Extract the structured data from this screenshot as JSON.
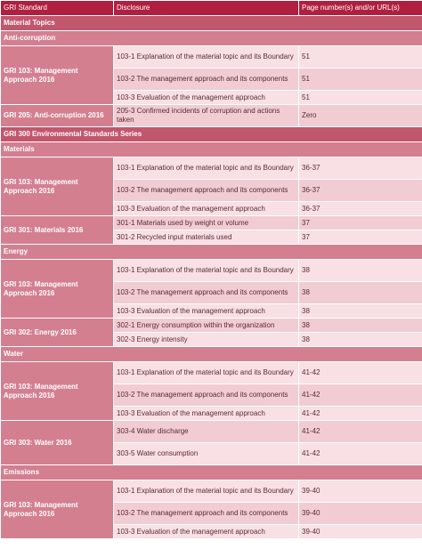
{
  "headers": [
    "GRI Standard",
    "Disclosure",
    "Page number(s) and/or URL(s)"
  ],
  "rows": [
    {
      "kind": "section",
      "label": "Material Topics"
    },
    {
      "kind": "group",
      "label": "Anti-corruption"
    },
    {
      "kind": "item",
      "std": "GRI 103: Management Approach 2016",
      "span": 3,
      "disclosure": "103-1 Explanation of the material topic and its Boundary",
      "page": "51"
    },
    {
      "kind": "item",
      "disclosure": "103-2 The management approach and its components",
      "page": "51"
    },
    {
      "kind": "item",
      "disclosure": "103-3 Evaluation of the management approach",
      "page": "51",
      "single": true
    },
    {
      "kind": "item",
      "std": "GRI 205: Anti-corruption 2016",
      "span": 1,
      "disclosure": "205-3 Confirmed incidents of corruption and actions taken",
      "page": "Zero"
    },
    {
      "kind": "section",
      "label": "GRI 300 Environmental Standards Series"
    },
    {
      "kind": "group",
      "label": "Materials"
    },
    {
      "kind": "item",
      "std": "GRI 103: Management Approach 2016",
      "span": 3,
      "disclosure": "103-1 Explanation of the material topic and its Boundary",
      "page": "36-37"
    },
    {
      "kind": "item",
      "disclosure": "103-2 The management approach and its components",
      "page": "36-37"
    },
    {
      "kind": "item",
      "disclosure": "103-3 Evaluation of the management approach",
      "page": "36-37",
      "single": true
    },
    {
      "kind": "item",
      "std": "GRI 301: Materials 2016",
      "span": 2,
      "disclosure": "301-1 Materials used by weight or volume",
      "page": "37",
      "single": true
    },
    {
      "kind": "item",
      "disclosure": "301-2 Recycled input materials used",
      "page": "37",
      "single": true
    },
    {
      "kind": "group",
      "label": "Energy"
    },
    {
      "kind": "item",
      "std": "GRI 103: Management Approach 2016",
      "span": 3,
      "disclosure": "103-1 Explanation of the material topic and its Boundary",
      "page": "38"
    },
    {
      "kind": "item",
      "disclosure": "103-2 The management approach and its components",
      "page": "38"
    },
    {
      "kind": "item",
      "disclosure": "103-3 Evaluation of the management approach",
      "page": "38",
      "single": true
    },
    {
      "kind": "item",
      "std": "GRI 302: Energy 2016",
      "span": 2,
      "disclosure": "302-1 Energy consumption within the organization",
      "page": "38",
      "single": true
    },
    {
      "kind": "item",
      "disclosure": "302-3 Energy intensity",
      "page": "38",
      "single": true
    },
    {
      "kind": "group",
      "label": "Water"
    },
    {
      "kind": "item",
      "std": "GRI 103: Management Approach 2016",
      "span": 3,
      "disclosure": "103-1 Explanation of the material topic and its Boundary",
      "page": "41-42"
    },
    {
      "kind": "item",
      "disclosure": "103-2 The management approach and its components",
      "page": "41-42"
    },
    {
      "kind": "item",
      "disclosure": "103-3 Evaluation of the management approach",
      "page": "41-42",
      "single": true
    },
    {
      "kind": "item",
      "std": "GRI 303: Water 2016",
      "span": 2,
      "disclosure": "303-4 Water discharge",
      "page": "41-42"
    },
    {
      "kind": "item",
      "disclosure": "303-5 Water consumption",
      "page": "41-42"
    },
    {
      "kind": "group",
      "label": "Emissions"
    },
    {
      "kind": "item",
      "std": "GRI 103: Management Approach 2016",
      "span": 3,
      "disclosure": "103-1 Explanation of the material topic and its Boundary",
      "page": "39-40"
    },
    {
      "kind": "item",
      "disclosure": "103-2 The management approach and its components",
      "page": "39-40"
    },
    {
      "kind": "item",
      "disclosure": "103-3 Evaluation of the management approach",
      "page": "39-40",
      "single": true
    }
  ]
}
